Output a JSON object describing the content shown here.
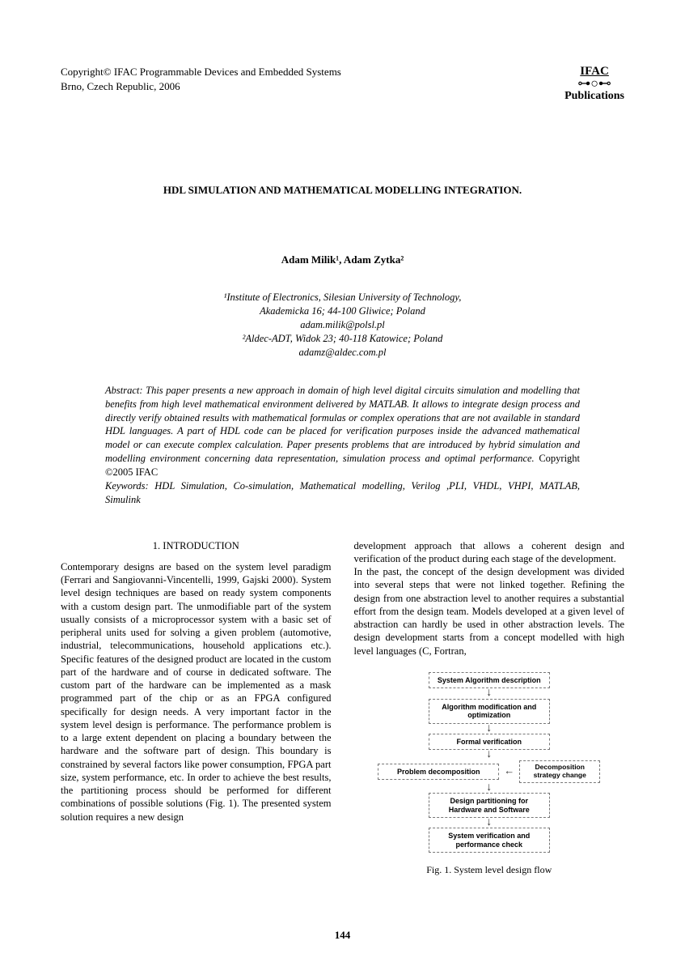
{
  "header": {
    "copyright_l1": "Copyright© IFAC Programmable Devices and Embedded Systems",
    "copyright_l2": "Brno, Czech Republic, 2006",
    "logo_word": "IFAC",
    "logo_pub": "Publications"
  },
  "title": "HDL SIMULATION AND MATHEMATICAL MODELLING INTEGRATION.",
  "authors": "Adam Milik¹, Adam Zytka²",
  "affil": {
    "l1": "¹Institute of Electronics, Silesian University of Technology,",
    "l2": "Akademicka 16; 44-100 Gliwice; Poland",
    "l3": "adam.milik@polsl.pl",
    "l4": "²Aldec-ADT, Widok 23; 40-118 Katowice; Poland",
    "l5": "adamz@aldec.com.pl"
  },
  "abstract": {
    "text": "Abstract: This paper presents a new approach in domain of high level digital circuits simulation and modelling that benefits from high level mathematical environment delivered by MATLAB. It allows to integrate design process and directly verify obtained results with mathematical formulas or complex operations that are not available in standard HDL languages. A part of HDL code can be placed for verification purposes inside the advanced mathematical model or can execute complex calculation. Paper presents problems that are introduced by hybrid simulation and modelling environment concerning data representation, simulation process and optimal performance.",
    "copyright": "Copyright ©2005 IFAC",
    "keywords": "Keywords: HDL Simulation, Co-simulation, Mathematical modelling, Verilog ,PLI, VHDL, VHPI, MATLAB, Simulink"
  },
  "intro_head": "1.   INTRODUCTION",
  "col_left": "Contemporary designs are based on the system level paradigm (Ferrari and Sangiovanni-Vincentelli, 1999, Gajski 2000). System level design techniques are based on ready system components with a custom design part. The unmodifiable part of the system usually consists of a microprocessor system with a basic set of peripheral units used for solving a given problem (automotive, industrial, telecommunications, household applications etc.). Specific features of the designed product are located in the custom part of the hardware and of course in dedicated software. The custom part of the hardware can be implemented as a mask programmed part of the chip or as an FPGA configured specifically for design needs. A very important factor in the system level design is performance. The performance problem is to a large extent dependent on placing a boundary between the hardware and the software part of design. This boundary is constrained by several factors like power consumption, FPGA part size, system performance, etc. In order to achieve the best results, the partitioning process should be performed for different combinations of possible solutions (Fig. 1). The presented system solution requires a new design",
  "col_right_p1": "development approach that allows a coherent design and verification of the product during each stage of the development.",
  "col_right_p2": "In the past, the concept of the design development was divided into several steps that were not linked together. Refining the design from one abstraction level to another requires a substantial effort from the design team. Models developed at a given level of abstraction can hardly be used in other abstraction levels. The design development starts from a concept modelled with high level languages (C, Fortran,",
  "flow": {
    "b1": "System Algorithm description",
    "b2": "Algorithm modification and optimization",
    "b3": "Formal verification",
    "b4": "Problem decomposition",
    "b4side": "Decomposition strategy change",
    "b5": "Design partitioning for Hardware and Software",
    "b6": "System verification and performance check"
  },
  "fig_caption": "Fig. 1. System level design flow",
  "page_num": "144"
}
